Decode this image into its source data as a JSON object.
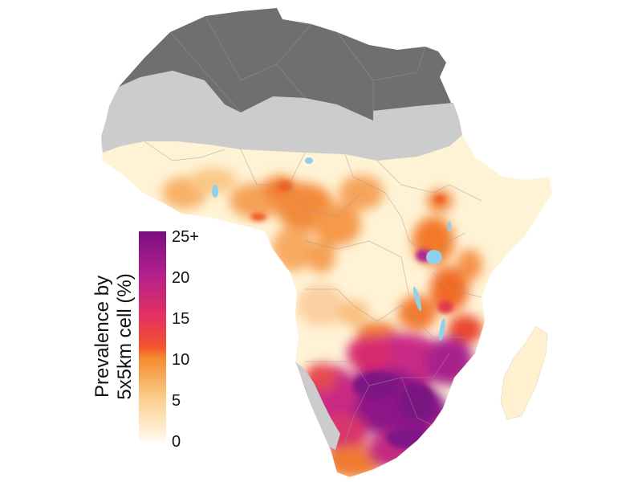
{
  "legend": {
    "title_line1": "Prevalence by",
    "title_line2": "5x5km cell (%)",
    "ticks": [
      "25+",
      "20",
      "15",
      "10",
      "5",
      "0"
    ],
    "tick_values": [
      25,
      20,
      15,
      10,
      5,
      0
    ],
    "max": 25
  },
  "colors": {
    "excluded_dark": "#6f6f6f",
    "excluded_light": "#cccccc",
    "water": "#8fd0ea",
    "scale": [
      "#fff7e2",
      "#fde3b4",
      "#fbc07a",
      "#f79446",
      "#f26a1d",
      "#e73a52",
      "#cf2a7d",
      "#a51f8e",
      "#7c1383"
    ]
  }
}
